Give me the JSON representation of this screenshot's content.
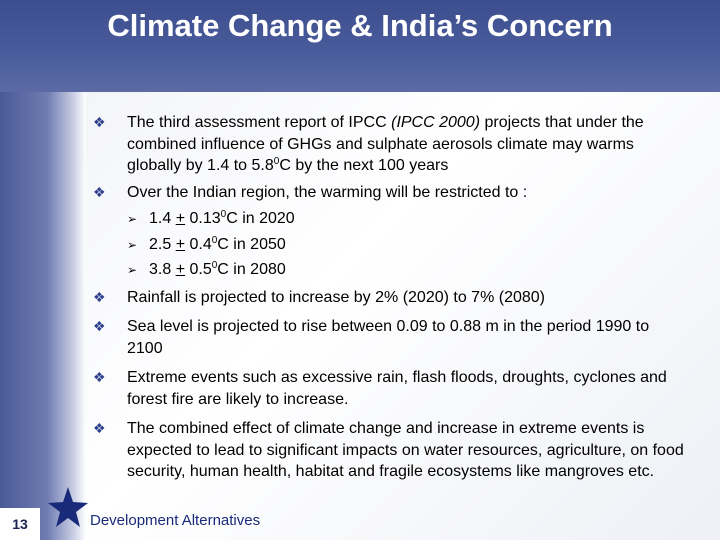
{
  "title": "Climate Change & India’s Concern",
  "page_number": "13",
  "footer": {
    "organization": "Development Alternatives"
  },
  "bullets": [
    {
      "pre": "The third assessment report of IPCC ",
      "italic": "(IPCC 2000)",
      "post": " projects that under the combined influence of GHGs and sulphate aerosols climate may warms globally by 1.4 to 5.8",
      "sup": "0",
      "end": "C by the next 100 years"
    },
    {
      "text": "Over the Indian region, the warming will be restricted to :"
    },
    {
      "text": "Rainfall is projected to increase by 2% (2020) to 7% (2080)"
    },
    {
      "text": "Sea level is projected to rise between 0.09 to 0.88 m in the period 1990 to 2100"
    },
    {
      "text": "Extreme events such as excessive rain, flash floods, droughts, cyclones and forest fire are likely to increase."
    },
    {
      "text": "The combined effect of climate change and increase in extreme events is expected to lead to significant impacts on water resources, agriculture, on food security, human health, habitat and fragile ecosystems like mangroves etc."
    }
  ],
  "sub_bullets": [
    {
      "a": "1.4 ",
      "pm": "+",
      "b": " 0.13",
      "sup": "0",
      "c": "C in 2020"
    },
    {
      "a": "2.5 ",
      "pm": "+",
      "b": " 0.4",
      "sup": "0",
      "c": "C in 2050"
    },
    {
      "a": "3.8 ",
      "pm": "+",
      "b": " 0.5",
      "sup": "0",
      "c": "C in 2080"
    }
  ],
  "icons": {
    "bullet": "diamond-bullet-icon",
    "sub_bullet": "arrow-bullet-icon",
    "logo": "star-icon"
  },
  "colors": {
    "header": "#3d4e8e",
    "accent": "#2c3e8c",
    "footer_text": "#1a2a7a"
  }
}
